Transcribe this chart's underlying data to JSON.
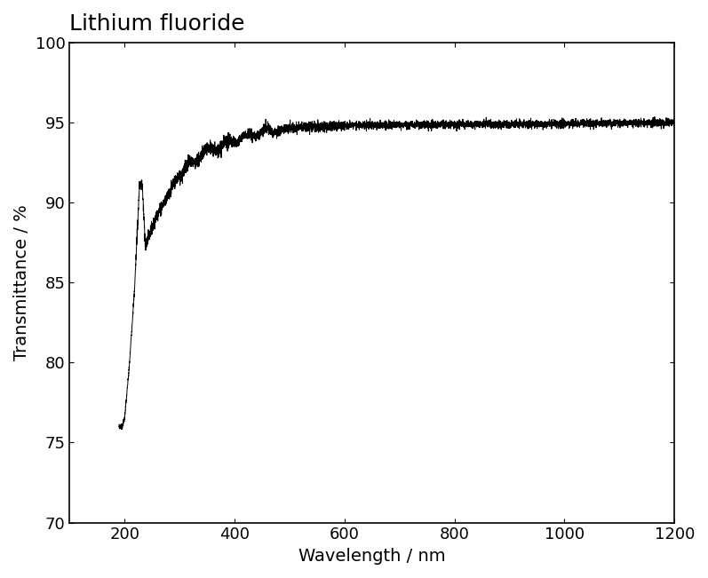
{
  "title": "Lithium fluoride",
  "xlabel": "Wavelength / nm",
  "ylabel": "Transmittance / %",
  "xlim": [
    100,
    1200
  ],
  "ylim": [
    70,
    100
  ],
  "xticks": [
    200,
    400,
    600,
    800,
    1000,
    1200
  ],
  "yticks": [
    70,
    75,
    80,
    85,
    90,
    95,
    100
  ],
  "line_color": "#000000",
  "background_color": "#ffffff",
  "title_fontsize": 18,
  "label_fontsize": 14,
  "tick_fontsize": 13
}
